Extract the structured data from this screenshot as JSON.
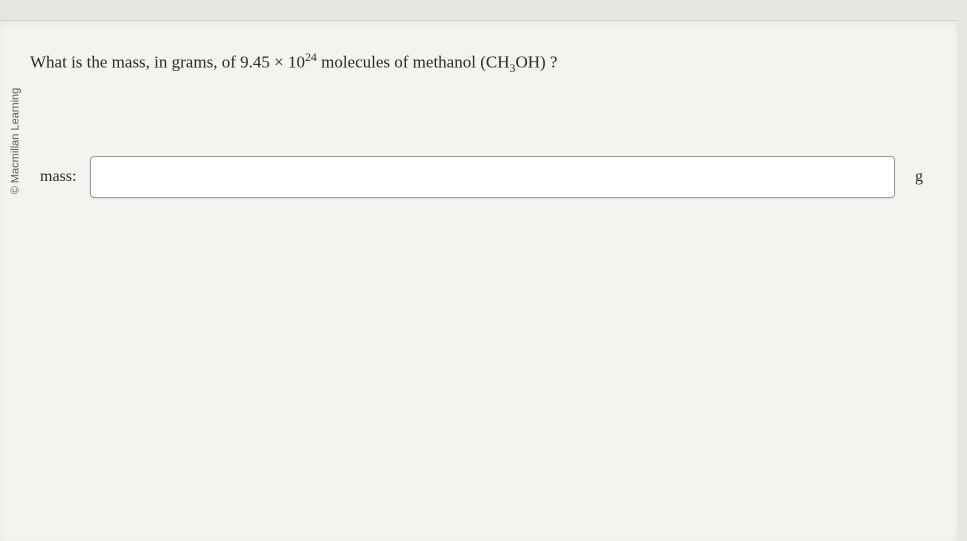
{
  "copyright": "© Macmillan Learning",
  "question": {
    "prefix": "What is the mass, in grams, of ",
    "coefficient": "9.45",
    "times": " × ",
    "base": "10",
    "exponent": "24",
    "mid": " molecules of methanol ",
    "formula_open": "(",
    "formula_ch": "CH",
    "formula_sub3": "3",
    "formula_oh": "OH",
    "formula_close": ")",
    "qmark": " ?"
  },
  "answer": {
    "label": "mass:",
    "value": "",
    "unit": "g"
  },
  "styling": {
    "page_bg": "#f5f3f0",
    "body_bg": "#e8e6e3",
    "text_color": "#2a2a2a",
    "input_border": "#9a9a9a",
    "input_bg": "#ffffff",
    "question_fontsize": 17,
    "label_fontsize": 16,
    "input_height": 42
  }
}
